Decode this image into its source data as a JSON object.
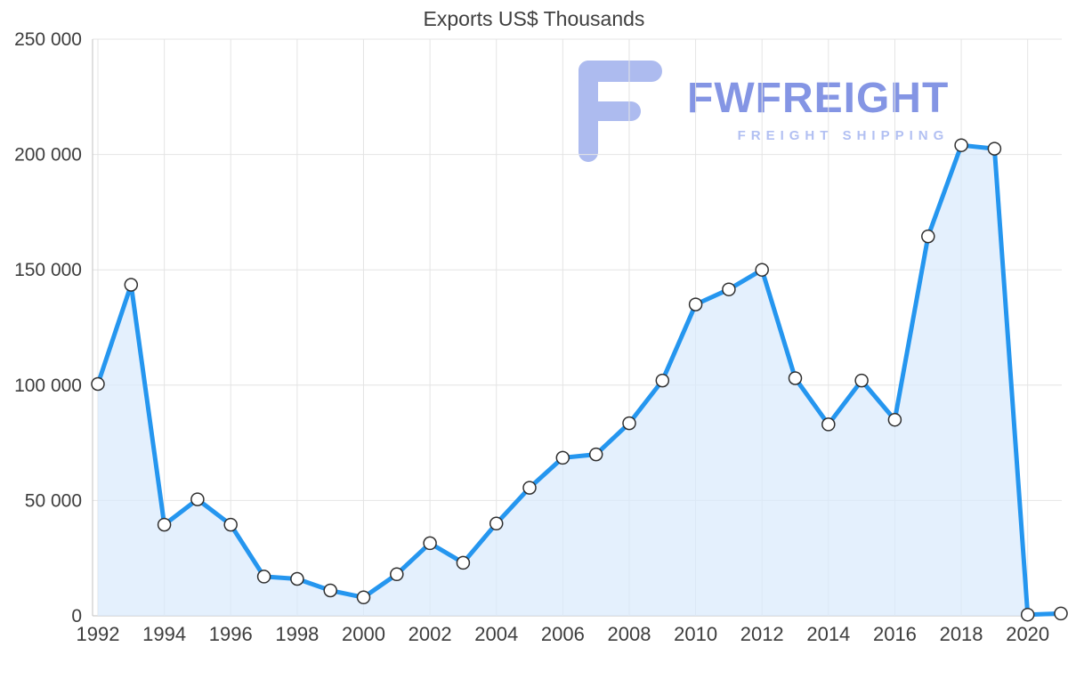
{
  "title": "Exports US$ Thousands",
  "watermark": {
    "brand": "FWFREIGHT",
    "tagline": "FREIGHT SHIPPING"
  },
  "colors": {
    "line": "#2596ef",
    "area": "#d9eafc",
    "marker_fill": "#ffffff",
    "marker_stroke": "#2f2f2f",
    "grid": "#e4e4e4",
    "axis": "#c2c2c2",
    "title_text": "#3f3f3f",
    "tick_text": "#3d3d3d",
    "logo": "#a9b8ef",
    "brand": "#7e90e3",
    "tagline": "#aebdf2"
  },
  "chart_data": {
    "type": "area",
    "title": "Exports US$ Thousands",
    "xlabel": "",
    "ylabel": "",
    "x": [
      1992,
      1993,
      1994,
      1995,
      1996,
      1997,
      1998,
      1999,
      2000,
      2001,
      2002,
      2003,
      2004,
      2005,
      2006,
      2007,
      2008,
      2009,
      2010,
      2011,
      2012,
      2013,
      2014,
      2015,
      2016,
      2017,
      2018,
      2019,
      2020,
      2021
    ],
    "values": [
      100500,
      143500,
      39500,
      50500,
      39500,
      17000,
      16000,
      11000,
      8000,
      18000,
      31500,
      23000,
      40000,
      55500,
      68500,
      70000,
      83500,
      102000,
      135000,
      141500,
      150000,
      103000,
      83000,
      102000,
      85000,
      164500,
      204000,
      202500,
      500,
      1000
    ],
    "ylim": [
      0,
      250000
    ],
    "ytick_step": 50000,
    "ytick_labels": [
      "0",
      "50 000",
      "100 000",
      "150 000",
      "200 000",
      "250 000"
    ],
    "xticks": [
      1992,
      1994,
      1996,
      1998,
      2000,
      2002,
      2004,
      2006,
      2008,
      2010,
      2012,
      2014,
      2016,
      2018,
      2020
    ],
    "grid": true,
    "legend": "none",
    "series_name": "Exports US$ Thousands"
  }
}
